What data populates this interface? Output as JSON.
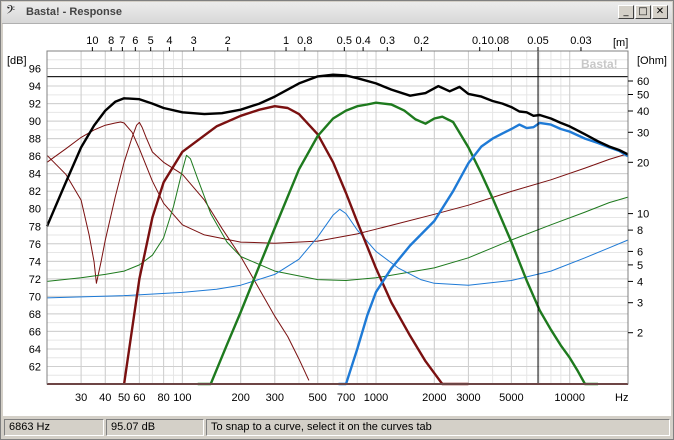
{
  "window": {
    "title": "Basta! - Response",
    "app_icon": "bass-clef-icon",
    "minimize_glyph": "_",
    "maximize_glyph": "□",
    "close_glyph": "✕"
  },
  "status": {
    "frequency": "6863 Hz",
    "level": "95.07 dB",
    "hint": "To snap to a curve, select it on the curves tab"
  },
  "chart_data": {
    "type": "line",
    "watermark": "Basta!",
    "xscale": "log",
    "xlim": [
      20,
      20000
    ],
    "ylim_left": [
      60,
      98
    ],
    "ylim_right_ohm_log": [
      1,
      90
    ],
    "left_unit": "[dB]",
    "right_unit": "[Ohm]",
    "top_unit": "[m]",
    "x_unit": "Hz",
    "grid": true,
    "x_ticks": [
      30,
      40,
      50,
      60,
      80,
      100,
      200,
      300,
      500,
      700,
      1000,
      2000,
      3000,
      5000,
      10000
    ],
    "x_tick_labels": [
      "30",
      "40",
      "50",
      "60",
      "80",
      "100",
      "200",
      "300",
      "500",
      "700",
      "1000",
      "2000",
      "3000",
      "5000",
      "10000"
    ],
    "y_ticks": [
      62,
      64,
      66,
      68,
      70,
      72,
      74,
      76,
      78,
      80,
      82,
      84,
      86,
      88,
      90,
      92,
      94,
      96
    ],
    "y_tick_labels": [
      "62",
      "64",
      "66",
      "68",
      "70",
      "72",
      "74",
      "76",
      "78",
      "80",
      "82",
      "84",
      "86",
      "88",
      "90",
      "92",
      "94",
      "96"
    ],
    "ohm_ticks": [
      2,
      3,
      4,
      5,
      6,
      8,
      10,
      20,
      30,
      40,
      50,
      60
    ],
    "ohm_tick_labels": [
      "2",
      "3",
      "4",
      "5",
      "6",
      "8",
      "10",
      "20",
      "30",
      "40",
      "50",
      "60"
    ],
    "wavelength_ticks_m": [
      10,
      8,
      7,
      6,
      5,
      4,
      3,
      2,
      1,
      0.8,
      0.5,
      0.4,
      0.3,
      0.2,
      0.1,
      0.08,
      0.05,
      0.03
    ],
    "wavelength_tick_labels": [
      "10",
      "8",
      "7",
      "6",
      "5",
      "4",
      "3",
      "2",
      "1",
      "0.8",
      "0.5",
      "0.4",
      "0.3",
      "0.2",
      "0.1",
      "0.08",
      "0.05",
      "0.03"
    ],
    "cursor": {
      "x": 6863,
      "y": 95.07,
      "color": "#000000"
    },
    "colors": {
      "total": "#000000",
      "woofer": "#7a1010",
      "mid": "#1e7a1e",
      "tweeter": "#1e7ad6"
    },
    "series": [
      {
        "color": "#000000",
        "width": 2.4,
        "unit": "dB",
        "points": [
          [
            20,
            78
          ],
          [
            25,
            83
          ],
          [
            30,
            87
          ],
          [
            35,
            89.5
          ],
          [
            40,
            91.2
          ],
          [
            45,
            92.2
          ],
          [
            50,
            92.6
          ],
          [
            60,
            92.5
          ],
          [
            70,
            92
          ],
          [
            80,
            91.5
          ],
          [
            100,
            91
          ],
          [
            130,
            90.8
          ],
          [
            160,
            90.9
          ],
          [
            200,
            91.3
          ],
          [
            250,
            92
          ],
          [
            300,
            92.8
          ],
          [
            400,
            94.3
          ],
          [
            500,
            95.1
          ],
          [
            600,
            95.3
          ],
          [
            700,
            95.2
          ],
          [
            800,
            94.9
          ],
          [
            1000,
            94.3
          ],
          [
            1200,
            93.6
          ],
          [
            1500,
            92.9
          ],
          [
            1800,
            93.2
          ],
          [
            2100,
            94
          ],
          [
            2400,
            93.4
          ],
          [
            2700,
            93.9
          ],
          [
            3000,
            93.1
          ],
          [
            3500,
            92.8
          ],
          [
            4000,
            92.3
          ],
          [
            4500,
            92
          ],
          [
            5000,
            91.6
          ],
          [
            5500,
            91.1
          ],
          [
            6000,
            91
          ],
          [
            6500,
            90.6
          ],
          [
            7000,
            90.7
          ],
          [
            8000,
            90.3
          ],
          [
            9000,
            89.8
          ],
          [
            10000,
            89.4
          ],
          [
            12000,
            88.5
          ],
          [
            14000,
            87.7
          ],
          [
            16000,
            87.1
          ],
          [
            18000,
            86.7
          ],
          [
            20000,
            86.2
          ]
        ]
      },
      {
        "color": "#7a1010",
        "width": 2.4,
        "unit": "dB",
        "points": [
          [
            50,
            60
          ],
          [
            60,
            72
          ],
          [
            70,
            79
          ],
          [
            80,
            83
          ],
          [
            100,
            86.5
          ],
          [
            150,
            89.4
          ],
          [
            200,
            90.6
          ],
          [
            250,
            91.3
          ],
          [
            300,
            91.7
          ],
          [
            350,
            91.5
          ],
          [
            400,
            90.8
          ],
          [
            500,
            88.5
          ],
          [
            600,
            85.3
          ],
          [
            700,
            81.8
          ],
          [
            800,
            78.5
          ],
          [
            1000,
            73.2
          ],
          [
            1200,
            69.3
          ],
          [
            1500,
            65.5
          ],
          [
            1800,
            62.6
          ],
          [
            2200,
            59.8
          ],
          [
            3000,
            56
          ]
        ]
      },
      {
        "color": "#1e7a1e",
        "width": 2.4,
        "unit": "dB",
        "points": [
          [
            120,
            56
          ],
          [
            140,
            60
          ],
          [
            170,
            64.5
          ],
          [
            200,
            68.2
          ],
          [
            250,
            73.5
          ],
          [
            300,
            77.8
          ],
          [
            400,
            84.5
          ],
          [
            500,
            88.3
          ],
          [
            600,
            90.3
          ],
          [
            700,
            91.2
          ],
          [
            800,
            91.7
          ],
          [
            900,
            91.9
          ],
          [
            1000,
            92.1
          ],
          [
            1200,
            91.9
          ],
          [
            1400,
            91.2
          ],
          [
            1600,
            90.2
          ],
          [
            1800,
            89.7
          ],
          [
            2000,
            90.3
          ],
          [
            2200,
            90.5
          ],
          [
            2500,
            89.9
          ],
          [
            3000,
            87
          ],
          [
            3500,
            84
          ],
          [
            4000,
            81.2
          ],
          [
            5000,
            76.2
          ],
          [
            6000,
            71.8
          ],
          [
            7000,
            68.4
          ],
          [
            8000,
            66.2
          ],
          [
            9000,
            64.4
          ],
          [
            10000,
            63
          ],
          [
            11000,
            61.5
          ],
          [
            12000,
            60
          ],
          [
            14000,
            56
          ]
        ]
      },
      {
        "color": "#1e7ad6",
        "width": 2.4,
        "unit": "dB",
        "points": [
          [
            640,
            56
          ],
          [
            700,
            59.5
          ],
          [
            800,
            64
          ],
          [
            900,
            67.8
          ],
          [
            1000,
            70.5
          ],
          [
            1200,
            73.2
          ],
          [
            1500,
            75.8
          ],
          [
            2000,
            78.6
          ],
          [
            2500,
            82
          ],
          [
            3000,
            85.2
          ],
          [
            3500,
            87.1
          ],
          [
            4000,
            88
          ],
          [
            4500,
            88.6
          ],
          [
            5000,
            89.1
          ],
          [
            5500,
            89.6
          ],
          [
            6000,
            89.2
          ],
          [
            6500,
            89.3
          ],
          [
            7000,
            89.8
          ],
          [
            8000,
            89.6
          ],
          [
            9000,
            89.1
          ],
          [
            10000,
            88.8
          ],
          [
            12000,
            88
          ],
          [
            14000,
            87.5
          ],
          [
            16000,
            87
          ],
          [
            18000,
            86.6
          ],
          [
            20000,
            86
          ]
        ]
      },
      {
        "color": "#7a1010",
        "width": 1,
        "unit": "ohm",
        "points": [
          [
            20,
            20
          ],
          [
            25,
            24
          ],
          [
            30,
            28
          ],
          [
            35,
            31
          ],
          [
            40,
            33
          ],
          [
            45,
            34
          ],
          [
            48,
            34.5
          ],
          [
            50,
            34
          ],
          [
            55,
            30
          ],
          [
            60,
            24
          ],
          [
            70,
            15.5
          ],
          [
            80,
            11.5
          ],
          [
            100,
            8.6
          ],
          [
            130,
            7.5
          ],
          [
            200,
            6.8
          ],
          [
            300,
            6.7
          ],
          [
            500,
            6.9
          ],
          [
            800,
            7.6
          ],
          [
            1000,
            8.1
          ],
          [
            2000,
            9.9
          ],
          [
            3000,
            11.2
          ],
          [
            5000,
            13.5
          ],
          [
            8000,
            15.8
          ],
          [
            12000,
            18.5
          ],
          [
            16000,
            20.8
          ],
          [
            20000,
            22.5
          ]
        ]
      },
      {
        "color": "#7a1010",
        "width": 1,
        "unit": "ohm",
        "points": [
          [
            20,
            22
          ],
          [
            25,
            17
          ],
          [
            30,
            12
          ],
          [
            33,
            7.5
          ],
          [
            35,
            5.2
          ],
          [
            36,
            3.9
          ],
          [
            38,
            5.2
          ],
          [
            40,
            7
          ],
          [
            45,
            12.5
          ],
          [
            50,
            20
          ],
          [
            55,
            28
          ],
          [
            58,
            33
          ],
          [
            60,
            34.3
          ],
          [
            62,
            32
          ],
          [
            65,
            28
          ],
          [
            70,
            23
          ],
          [
            80,
            20
          ],
          [
            100,
            17
          ],
          [
            130,
            12
          ],
          [
            160,
            8.2
          ],
          [
            200,
            5.6
          ],
          [
            250,
            3.6
          ],
          [
            300,
            2.5
          ],
          [
            350,
            1.9
          ],
          [
            400,
            1.4
          ],
          [
            450,
            1.05
          ]
        ]
      },
      {
        "color": "#1e7a1e",
        "width": 1,
        "unit": "ohm",
        "points": [
          [
            20,
            4
          ],
          [
            30,
            4.2
          ],
          [
            40,
            4.4
          ],
          [
            50,
            4.6
          ],
          [
            60,
            5
          ],
          [
            70,
            5.7
          ],
          [
            80,
            7.2
          ],
          [
            90,
            11
          ],
          [
            100,
            18
          ],
          [
            105,
            22
          ],
          [
            110,
            21
          ],
          [
            120,
            16
          ],
          [
            140,
            10
          ],
          [
            170,
            6.8
          ],
          [
            200,
            5.6
          ],
          [
            300,
            4.6
          ],
          [
            500,
            4.1
          ],
          [
            700,
            4.05
          ],
          [
            1000,
            4.2
          ],
          [
            2000,
            4.8
          ],
          [
            3000,
            5.5
          ],
          [
            5000,
            7
          ],
          [
            8000,
            8.6
          ],
          [
            12000,
            10.2
          ],
          [
            16000,
            11.6
          ],
          [
            20000,
            12.5
          ]
        ]
      },
      {
        "color": "#1e7ad6",
        "width": 1,
        "unit": "ohm",
        "points": [
          [
            20,
            3.2
          ],
          [
            50,
            3.3
          ],
          [
            100,
            3.45
          ],
          [
            150,
            3.6
          ],
          [
            200,
            3.8
          ],
          [
            300,
            4.4
          ],
          [
            400,
            5.4
          ],
          [
            500,
            7.3
          ],
          [
            600,
            9.8
          ],
          [
            650,
            10.6
          ],
          [
            700,
            10
          ],
          [
            800,
            8
          ],
          [
            1000,
            6
          ],
          [
            1300,
            4.8
          ],
          [
            1700,
            4.1
          ],
          [
            2000,
            3.9
          ],
          [
            3000,
            3.8
          ],
          [
            5000,
            4.05
          ],
          [
            8000,
            4.6
          ],
          [
            12000,
            5.5
          ],
          [
            16000,
            6.3
          ],
          [
            20000,
            7
          ]
        ]
      }
    ]
  }
}
